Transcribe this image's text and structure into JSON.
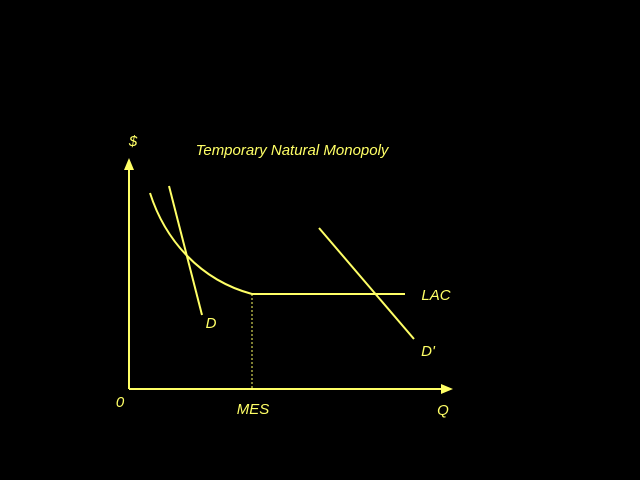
{
  "title": "Temporary Natural Monopoly",
  "axes": {
    "y_label": "$",
    "x_label": "Q",
    "origin": "0"
  },
  "markers": {
    "mes": "MES"
  },
  "curves": [
    {
      "label": "LAC"
    },
    {
      "label": "D"
    },
    {
      "label": "D'"
    }
  ]
}
